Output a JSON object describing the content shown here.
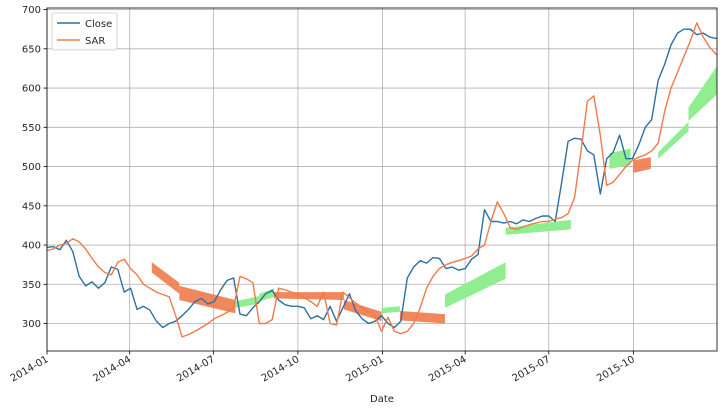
{
  "chart_data": {
    "type": "line",
    "title": "",
    "xlabel": "Date",
    "ylabel": "",
    "xlim": [
      "2014-01-01",
      "2015-12-31"
    ],
    "ylim": [
      265,
      702
    ],
    "grid": true,
    "legend_position": "top-left",
    "x_ticks": [
      "2014-01",
      "2014-04",
      "2014-07",
      "2014-10",
      "2015-01",
      "2015-04",
      "2015-07",
      "2015-10"
    ],
    "y_ticks": [
      300,
      350,
      400,
      450,
      500,
      550,
      600,
      650,
      700
    ],
    "colors": {
      "close": "#2f6fa3",
      "sar": "#f07a4a",
      "band_up": "#90ee90",
      "band_down": "#f07a4a"
    },
    "series": [
      {
        "name": "Close",
        "color": "#2f6fa3",
        "points": [
          [
            "2014-01-01",
            397
          ],
          [
            "2014-01-08",
            398
          ],
          [
            "2014-01-15",
            394
          ],
          [
            "2014-01-22",
            406
          ],
          [
            "2014-01-29",
            392
          ],
          [
            "2014-02-05",
            360
          ],
          [
            "2014-02-12",
            348
          ],
          [
            "2014-02-19",
            353
          ],
          [
            "2014-02-26",
            345
          ],
          [
            "2014-03-05",
            352
          ],
          [
            "2014-03-12",
            372
          ],
          [
            "2014-03-19",
            369
          ],
          [
            "2014-03-26",
            340
          ],
          [
            "2014-04-02",
            345
          ],
          [
            "2014-04-09",
            318
          ],
          [
            "2014-04-16",
            322
          ],
          [
            "2014-04-23",
            317
          ],
          [
            "2014-04-30",
            303
          ],
          [
            "2014-05-07",
            295
          ],
          [
            "2014-05-14",
            300
          ],
          [
            "2014-05-21",
            303
          ],
          [
            "2014-05-28",
            310
          ],
          [
            "2014-06-04",
            318
          ],
          [
            "2014-06-11",
            328
          ],
          [
            "2014-06-18",
            332
          ],
          [
            "2014-06-25",
            325
          ],
          [
            "2014-07-02",
            328
          ],
          [
            "2014-07-09",
            343
          ],
          [
            "2014-07-16",
            355
          ],
          [
            "2014-07-23",
            358
          ],
          [
            "2014-07-30",
            312
          ],
          [
            "2014-08-06",
            310
          ],
          [
            "2014-08-13",
            320
          ],
          [
            "2014-08-20",
            328
          ],
          [
            "2014-08-27",
            338
          ],
          [
            "2014-09-03",
            342
          ],
          [
            "2014-09-10",
            330
          ],
          [
            "2014-09-17",
            324
          ],
          [
            "2014-09-24",
            322
          ],
          [
            "2014-10-01",
            322
          ],
          [
            "2014-10-08",
            320
          ],
          [
            "2014-10-15",
            306
          ],
          [
            "2014-10-22",
            310
          ],
          [
            "2014-10-29",
            305
          ],
          [
            "2014-11-05",
            322
          ],
          [
            "2014-11-12",
            303
          ],
          [
            "2014-11-19",
            320
          ],
          [
            "2014-11-26",
            338
          ],
          [
            "2014-12-03",
            316
          ],
          [
            "2014-12-10",
            306
          ],
          [
            "2014-12-17",
            300
          ],
          [
            "2014-12-24",
            303
          ],
          [
            "2014-12-31",
            310
          ],
          [
            "2015-01-07",
            300
          ],
          [
            "2015-01-14",
            295
          ],
          [
            "2015-01-21",
            303
          ],
          [
            "2015-01-28",
            358
          ],
          [
            "2015-02-04",
            372
          ],
          [
            "2015-02-11",
            380
          ],
          [
            "2015-02-18",
            377
          ],
          [
            "2015-02-25",
            384
          ],
          [
            "2015-03-04",
            383
          ],
          [
            "2015-03-11",
            370
          ],
          [
            "2015-03-18",
            372
          ],
          [
            "2015-03-25",
            368
          ],
          [
            "2015-04-01",
            370
          ],
          [
            "2015-04-08",
            382
          ],
          [
            "2015-04-15",
            388
          ],
          [
            "2015-04-22",
            445
          ],
          [
            "2015-04-29",
            430
          ],
          [
            "2015-05-06",
            430
          ],
          [
            "2015-05-13",
            428
          ],
          [
            "2015-05-20",
            430
          ],
          [
            "2015-05-27",
            427
          ],
          [
            "2015-06-03",
            432
          ],
          [
            "2015-06-10",
            430
          ],
          [
            "2015-06-17",
            434
          ],
          [
            "2015-06-24",
            437
          ],
          [
            "2015-07-01",
            437
          ],
          [
            "2015-07-08",
            430
          ],
          [
            "2015-07-15",
            480
          ],
          [
            "2015-07-22",
            532
          ],
          [
            "2015-07-29",
            536
          ],
          [
            "2015-08-05",
            535
          ],
          [
            "2015-08-12",
            520
          ],
          [
            "2015-08-19",
            515
          ],
          [
            "2015-08-26",
            465
          ],
          [
            "2015-09-02",
            510
          ],
          [
            "2015-09-09",
            518
          ],
          [
            "2015-09-16",
            540
          ],
          [
            "2015-09-23",
            510
          ],
          [
            "2015-09-30",
            510
          ],
          [
            "2015-10-07",
            528
          ],
          [
            "2015-10-14",
            550
          ],
          [
            "2015-10-21",
            560
          ],
          [
            "2015-10-28",
            610
          ],
          [
            "2015-11-04",
            630
          ],
          [
            "2015-11-11",
            655
          ],
          [
            "2015-11-18",
            670
          ],
          [
            "2015-11-25",
            675
          ],
          [
            "2015-12-02",
            675
          ],
          [
            "2015-12-09",
            668
          ],
          [
            "2015-12-16",
            670
          ],
          [
            "2015-12-23",
            665
          ],
          [
            "2015-12-31",
            663
          ]
        ]
      },
      {
        "name": "SAR",
        "color": "#f07a4a",
        "points": [
          [
            "2014-01-01",
            393
          ],
          [
            "2014-01-08",
            395
          ],
          [
            "2014-01-15",
            400
          ],
          [
            "2014-01-22",
            402
          ],
          [
            "2014-01-29",
            408
          ],
          [
            "2014-02-05",
            404
          ],
          [
            "2014-02-12",
            395
          ],
          [
            "2014-02-19",
            383
          ],
          [
            "2014-02-26",
            372
          ],
          [
            "2014-03-05",
            365
          ],
          [
            "2014-03-12",
            362
          ],
          [
            "2014-03-19",
            378
          ],
          [
            "2014-03-26",
            382
          ],
          [
            "2014-04-02",
            370
          ],
          [
            "2014-04-09",
            362
          ],
          [
            "2014-04-16",
            350
          ],
          [
            "2014-04-23",
            345
          ],
          [
            "2014-04-30",
            340
          ],
          [
            "2014-05-07",
            337
          ],
          [
            "2014-05-14",
            334
          ],
          [
            "2014-05-21",
            310
          ],
          [
            "2014-05-28",
            283
          ],
          [
            "2014-06-04",
            286
          ],
          [
            "2014-06-11",
            290
          ],
          [
            "2014-06-18",
            295
          ],
          [
            "2014-06-25",
            300
          ],
          [
            "2014-07-02",
            306
          ],
          [
            "2014-07-09",
            310
          ],
          [
            "2014-07-16",
            314
          ],
          [
            "2014-07-23",
            320
          ],
          [
            "2014-07-30",
            360
          ],
          [
            "2014-08-06",
            357
          ],
          [
            "2014-08-13",
            352
          ],
          [
            "2014-08-20",
            300
          ],
          [
            "2014-08-27",
            300
          ],
          [
            "2014-09-03",
            305
          ],
          [
            "2014-09-10",
            345
          ],
          [
            "2014-09-17",
            343
          ],
          [
            "2014-09-24",
            340
          ],
          [
            "2014-10-01",
            337
          ],
          [
            "2014-10-08",
            333
          ],
          [
            "2014-10-15",
            328
          ],
          [
            "2014-10-22",
            322
          ],
          [
            "2014-10-29",
            340
          ],
          [
            "2014-11-05",
            300
          ],
          [
            "2014-11-12",
            298
          ],
          [
            "2014-11-19",
            340
          ],
          [
            "2014-11-26",
            333
          ],
          [
            "2014-12-03",
            326
          ],
          [
            "2014-12-10",
            320
          ],
          [
            "2014-12-17",
            315
          ],
          [
            "2014-12-24",
            310
          ],
          [
            "2014-12-31",
            290
          ],
          [
            "2015-01-07",
            308
          ],
          [
            "2015-01-14",
            290
          ],
          [
            "2015-01-21",
            287
          ],
          [
            "2015-01-28",
            290
          ],
          [
            "2015-02-04",
            300
          ],
          [
            "2015-02-11",
            320
          ],
          [
            "2015-02-18",
            345
          ],
          [
            "2015-02-25",
            360
          ],
          [
            "2015-03-04",
            370
          ],
          [
            "2015-03-11",
            375
          ],
          [
            "2015-03-18",
            378
          ],
          [
            "2015-03-25",
            380
          ],
          [
            "2015-04-01",
            383
          ],
          [
            "2015-04-08",
            386
          ],
          [
            "2015-04-15",
            395
          ],
          [
            "2015-04-22",
            400
          ],
          [
            "2015-04-29",
            430
          ],
          [
            "2015-05-06",
            455
          ],
          [
            "2015-05-13",
            440
          ],
          [
            "2015-05-20",
            422
          ],
          [
            "2015-05-27",
            420
          ],
          [
            "2015-06-03",
            423
          ],
          [
            "2015-06-10",
            426
          ],
          [
            "2015-06-17",
            428
          ],
          [
            "2015-06-24",
            430
          ],
          [
            "2015-07-01",
            430
          ],
          [
            "2015-07-08",
            433
          ],
          [
            "2015-07-15",
            435
          ],
          [
            "2015-07-22",
            440
          ],
          [
            "2015-07-29",
            460
          ],
          [
            "2015-08-05",
            520
          ],
          [
            "2015-08-12",
            583
          ],
          [
            "2015-08-19",
            590
          ],
          [
            "2015-08-26",
            540
          ],
          [
            "2015-09-02",
            476
          ],
          [
            "2015-09-09",
            480
          ],
          [
            "2015-09-16",
            490
          ],
          [
            "2015-09-23",
            500
          ],
          [
            "2015-09-30",
            508
          ],
          [
            "2015-10-07",
            512
          ],
          [
            "2015-10-14",
            515
          ],
          [
            "2015-10-21",
            520
          ],
          [
            "2015-10-28",
            530
          ],
          [
            "2015-11-04",
            570
          ],
          [
            "2015-11-11",
            600
          ],
          [
            "2015-11-18",
            620
          ],
          [
            "2015-11-25",
            640
          ],
          [
            "2015-12-02",
            660
          ],
          [
            "2015-12-09",
            683
          ],
          [
            "2015-12-16",
            665
          ],
          [
            "2015-12-23",
            652
          ],
          [
            "2015-12-31",
            642
          ]
        ]
      }
    ],
    "bands": [
      {
        "kind": "down",
        "from": "2014-04-25",
        "to": "2014-05-25",
        "start": [
          365,
          378
        ],
        "end": [
          338,
          352
        ]
      },
      {
        "kind": "down",
        "from": "2014-05-25",
        "to": "2014-07-25",
        "start": [
          330,
          348
        ],
        "end": [
          313,
          330
        ]
      },
      {
        "kind": "up",
        "from": "2014-07-25",
        "to": "2014-08-20",
        "start": [
          320,
          328
        ],
        "end": [
          325,
          335
        ]
      },
      {
        "kind": "up",
        "from": "2014-08-20",
        "to": "2014-09-05",
        "start": [
          328,
          338
        ],
        "end": [
          334,
          345
        ]
      },
      {
        "kind": "down",
        "from": "2014-09-05",
        "to": "2014-11-20",
        "start": [
          332,
          340
        ],
        "end": [
          330,
          340
        ]
      },
      {
        "kind": "down",
        "from": "2014-11-20",
        "to": "2014-12-31",
        "start": [
          318,
          330
        ],
        "end": [
          303,
          315
        ]
      },
      {
        "kind": "up",
        "from": "2014-12-31",
        "to": "2015-01-20",
        "start": [
          313,
          320
        ],
        "end": [
          315,
          322
        ]
      },
      {
        "kind": "down",
        "from": "2015-01-20",
        "to": "2015-03-10",
        "start": [
          304,
          316
        ],
        "end": [
          300,
          312
        ]
      },
      {
        "kind": "up",
        "from": "2015-03-10",
        "to": "2015-05-15",
        "start": [
          320,
          337
        ],
        "end": [
          357,
          378
        ]
      },
      {
        "kind": "up",
        "from": "2015-05-15",
        "to": "2015-07-25",
        "start": [
          413,
          422
        ],
        "end": [
          420,
          432
        ]
      },
      {
        "kind": "up",
        "from": "2015-09-05",
        "to": "2015-09-28",
        "start": [
          497,
          517
        ],
        "end": [
          502,
          523
        ]
      },
      {
        "kind": "down",
        "from": "2015-10-01",
        "to": "2015-10-20",
        "start": [
          492,
          508
        ],
        "end": [
          497,
          512
        ]
      },
      {
        "kind": "up",
        "from": "2015-10-28",
        "to": "2015-11-30",
        "start": [
          510,
          518
        ],
        "end": [
          545,
          557
        ]
      },
      {
        "kind": "up",
        "from": "2015-11-30",
        "to": "2015-12-31",
        "start": [
          558,
          575
        ],
        "end": [
          592,
          628
        ]
      }
    ]
  }
}
